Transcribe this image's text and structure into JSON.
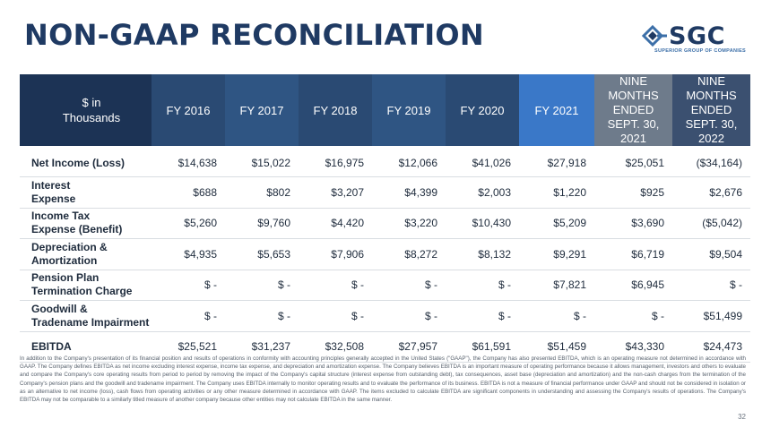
{
  "title": "NON-GAAP RECONCILIATION",
  "logo": {
    "text": "SGC",
    "tagline": "SUPERIOR GROUP OF COMPANIES",
    "icon": "sgc-diamond-logo",
    "color": "#1f3a63"
  },
  "table": {
    "label_header": [
      "$ in",
      "Thousands"
    ],
    "columns": [
      {
        "label": "FY 2016"
      },
      {
        "label": "FY 2017"
      },
      {
        "label": "FY 2018"
      },
      {
        "label": "FY 2019"
      },
      {
        "label": "FY 2020"
      },
      {
        "label": "FY 2021"
      },
      {
        "label": [
          "NINE MONTHS",
          "ENDED",
          "SEPT. 30, 2021"
        ]
      },
      {
        "label": [
          "NINE MONTHS",
          "ENDED",
          "SEPT. 30, 2022"
        ]
      }
    ],
    "rows": [
      {
        "label": [
          "Net Income (Loss)"
        ],
        "values": [
          "$14,638",
          "$15,022",
          "$16,975",
          "$12,066",
          "$41,026",
          "$27,918",
          "$25,051",
          "($34,164)"
        ]
      },
      {
        "label": [
          "Interest",
          "Expense"
        ],
        "values": [
          "$688",
          "$802",
          "$3,207",
          "$4,399",
          "$2,003",
          "$1,220",
          "$925",
          "$2,676"
        ]
      },
      {
        "label": [
          "Income Tax",
          "Expense (Benefit)"
        ],
        "values": [
          "$5,260",
          "$9,760",
          "$4,420",
          "$3,220",
          "$10,430",
          "$5,209",
          "$3,690",
          "($5,042)"
        ]
      },
      {
        "label": [
          "Depreciation &",
          "Amortization"
        ],
        "values": [
          "$4,935",
          "$5,653",
          "$7,906",
          "$8,272",
          "$8,132",
          "$9,291",
          "$6,719",
          "$9,504"
        ]
      },
      {
        "label": [
          "Pension Plan",
          "Termination Charge"
        ],
        "values": [
          "$ -",
          "$ -",
          "$ -",
          "$ -",
          "$ -",
          "$7,821",
          "$6,945",
          "$ -"
        ]
      },
      {
        "label": [
          "Goodwill &",
          "Tradename Impairment"
        ],
        "values": [
          "$ -",
          "$ -",
          "$ -",
          "$ -",
          "$ -",
          "$ -",
          "$ -",
          "$51,499"
        ]
      },
      {
        "label": [
          "EBITDA"
        ],
        "values": [
          "$25,521",
          "$31,237",
          "$32,508",
          "$27,957",
          "$61,591",
          "$51,459",
          "$43,330",
          "$24,473"
        ]
      }
    ]
  },
  "footnote": "In addition to the Company's presentation of its financial position and results of operations in conformity with accounting principles generally accepted in the United States (\"GAAP\"), the Company has also presented EBITDA, which is an operating measure not determined in accordance with GAAP. The Company defines EBITDA as net income excluding interest expense, income tax expense, and depreciation and amortization expense. The Company believes EBITDA is an important measure of operating performance because it allows management, investors and others to evaluate and compare the Company's core operating results from period to period by removing the impact of the Company's capital structure (interest expense from outstanding debt), tax consequences, asset base (depreciation and amortization) and the non-cash charges from the termination of the Company's pension plans and the goodwill and tradename impairment. The Company uses EBITDA internally to monitor operating results and to evaluate the performance of its business. EBITDA is not a measure of financial performance under GAAP and should not be considered in isolation or as an alternative to net income (loss), cash flows from operating activities or any other measure determined in accordance with GAAP. The items excluded to calculate EBITDA are significant components in understanding and assessing the Company's results of operations. The Company's EBITDA may not be comparable to a similarly titled measure of another company because other entities may not calculate EBITDA in the same manner.",
  "page_number": "32"
}
